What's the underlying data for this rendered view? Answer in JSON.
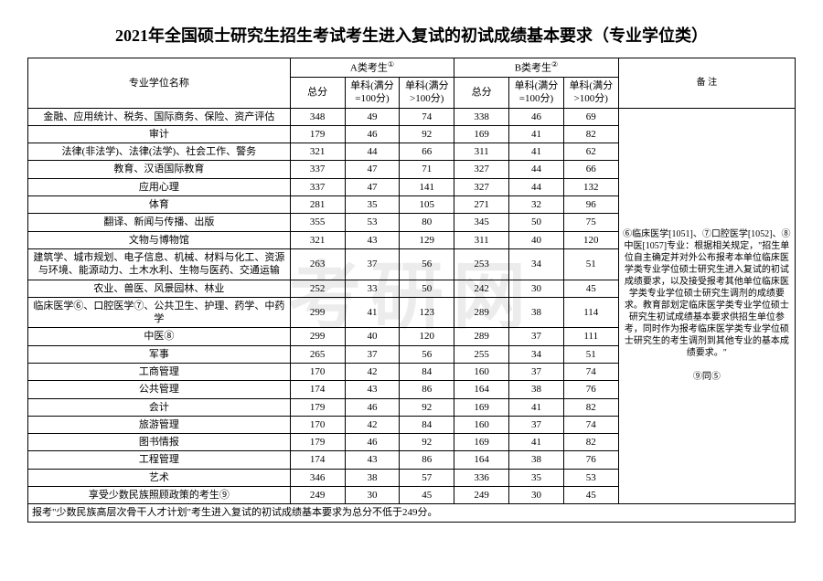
{
  "title": "2021年全国硕士研究生招生考试考生进入复试的初试成绩基本要求（专业学位类）",
  "watermark": "考研网",
  "headers": {
    "major_name": "专业学位名称",
    "group_a": "A类考生",
    "group_b": "B类考生",
    "remark": "备  注",
    "total": "总分",
    "sub100": "单科(满分=100分)",
    "sub_over100": "单科(满分>100分)",
    "sup_a": "①",
    "sup_b": "②"
  },
  "rows": [
    {
      "name": "金融、应用统计、税务、国际商务、保险、资产评估",
      "a_total": "348",
      "a_s1": "49",
      "a_s2": "74",
      "b_total": "338",
      "b_s1": "46",
      "b_s2": "69"
    },
    {
      "name": "审计",
      "a_total": "179",
      "a_s1": "46",
      "a_s2": "92",
      "b_total": "169",
      "b_s1": "41",
      "b_s2": "82"
    },
    {
      "name": "法律(非法学)、法律(法学)、社会工作、警务",
      "a_total": "321",
      "a_s1": "44",
      "a_s2": "66",
      "b_total": "311",
      "b_s1": "41",
      "b_s2": "62"
    },
    {
      "name": "教育、汉语国际教育",
      "a_total": "337",
      "a_s1": "47",
      "a_s2": "71",
      "b_total": "327",
      "b_s1": "44",
      "b_s2": "66"
    },
    {
      "name": "应用心理",
      "a_total": "337",
      "a_s1": "47",
      "a_s2": "141",
      "b_total": "327",
      "b_s1": "44",
      "b_s2": "132"
    },
    {
      "name": "体育",
      "a_total": "281",
      "a_s1": "35",
      "a_s2": "105",
      "b_total": "271",
      "b_s1": "32",
      "b_s2": "96"
    },
    {
      "name": "翻译、新闻与传播、出版",
      "a_total": "355",
      "a_s1": "53",
      "a_s2": "80",
      "b_total": "345",
      "b_s1": "50",
      "b_s2": "75"
    },
    {
      "name": "文物与博物馆",
      "a_total": "321",
      "a_s1": "43",
      "a_s2": "129",
      "b_total": "311",
      "b_s1": "40",
      "b_s2": "120"
    },
    {
      "name": "建筑学、城市规划、电子信息、机械、材料与化工、资源与环境、能源动力、土木水利、生物与医药、交通运输",
      "a_total": "263",
      "a_s1": "37",
      "a_s2": "56",
      "b_total": "253",
      "b_s1": "34",
      "b_s2": "51"
    },
    {
      "name": "农业、兽医、风景园林、林业",
      "a_total": "252",
      "a_s1": "33",
      "a_s2": "50",
      "b_total": "242",
      "b_s1": "30",
      "b_s2": "45"
    },
    {
      "name": "临床医学⑥、口腔医学⑦、公共卫生、护理、药学、中药学",
      "a_total": "299",
      "a_s1": "41",
      "a_s2": "123",
      "b_total": "289",
      "b_s1": "38",
      "b_s2": "114"
    },
    {
      "name": "中医⑧",
      "a_total": "299",
      "a_s1": "40",
      "a_s2": "120",
      "b_total": "289",
      "b_s1": "37",
      "b_s2": "111"
    },
    {
      "name": "军事",
      "a_total": "265",
      "a_s1": "37",
      "a_s2": "56",
      "b_total": "255",
      "b_s1": "34",
      "b_s2": "51"
    },
    {
      "name": "工商管理",
      "a_total": "170",
      "a_s1": "42",
      "a_s2": "84",
      "b_total": "160",
      "b_s1": "37",
      "b_s2": "74"
    },
    {
      "name": "公共管理",
      "a_total": "174",
      "a_s1": "43",
      "a_s2": "86",
      "b_total": "164",
      "b_s1": "38",
      "b_s2": "76"
    },
    {
      "name": "会计",
      "a_total": "179",
      "a_s1": "46",
      "a_s2": "92",
      "b_total": "169",
      "b_s1": "41",
      "b_s2": "82"
    },
    {
      "name": "旅游管理",
      "a_total": "170",
      "a_s1": "42",
      "a_s2": "84",
      "b_total": "160",
      "b_s1": "37",
      "b_s2": "74"
    },
    {
      "name": "图书情报",
      "a_total": "179",
      "a_s1": "46",
      "a_s2": "92",
      "b_total": "169",
      "b_s1": "41",
      "b_s2": "82"
    },
    {
      "name": "工程管理",
      "a_total": "174",
      "a_s1": "43",
      "a_s2": "86",
      "b_total": "164",
      "b_s1": "38",
      "b_s2": "76"
    },
    {
      "name": "艺术",
      "a_total": "346",
      "a_s1": "38",
      "a_s2": "57",
      "b_total": "336",
      "b_s1": "35",
      "b_s2": "53"
    },
    {
      "name": "享受少数民族照顾政策的考生⑨",
      "a_total": "249",
      "a_s1": "30",
      "a_s2": "45",
      "b_total": "249",
      "b_s1": "30",
      "b_s2": "45"
    }
  ],
  "remark_text": "⑥临床医学[1051]、⑦口腔医学[1052]、⑧中医[1057]专业：根据相关规定，\"招生单位自主确定并对外公布报考本单位临床医学类专业学位硕士研究生进入复试的初试成绩要求，以及接受报考其他单位临床医学类专业学位硕士研究生调剂的成绩要求。教育部划定临床医学类专业学位硕士研究生初试成绩基本要求供招生单位参考，同时作为报考临床医学类专业学位硕士研究生的考生调剂到其他专业的基本成绩要求。\"\n\n⑨同⑤",
  "footnote": "报考\"少数民族高层次骨干人才计划\"考生进入复试的初试成绩基本要求为总分不低于249分。"
}
